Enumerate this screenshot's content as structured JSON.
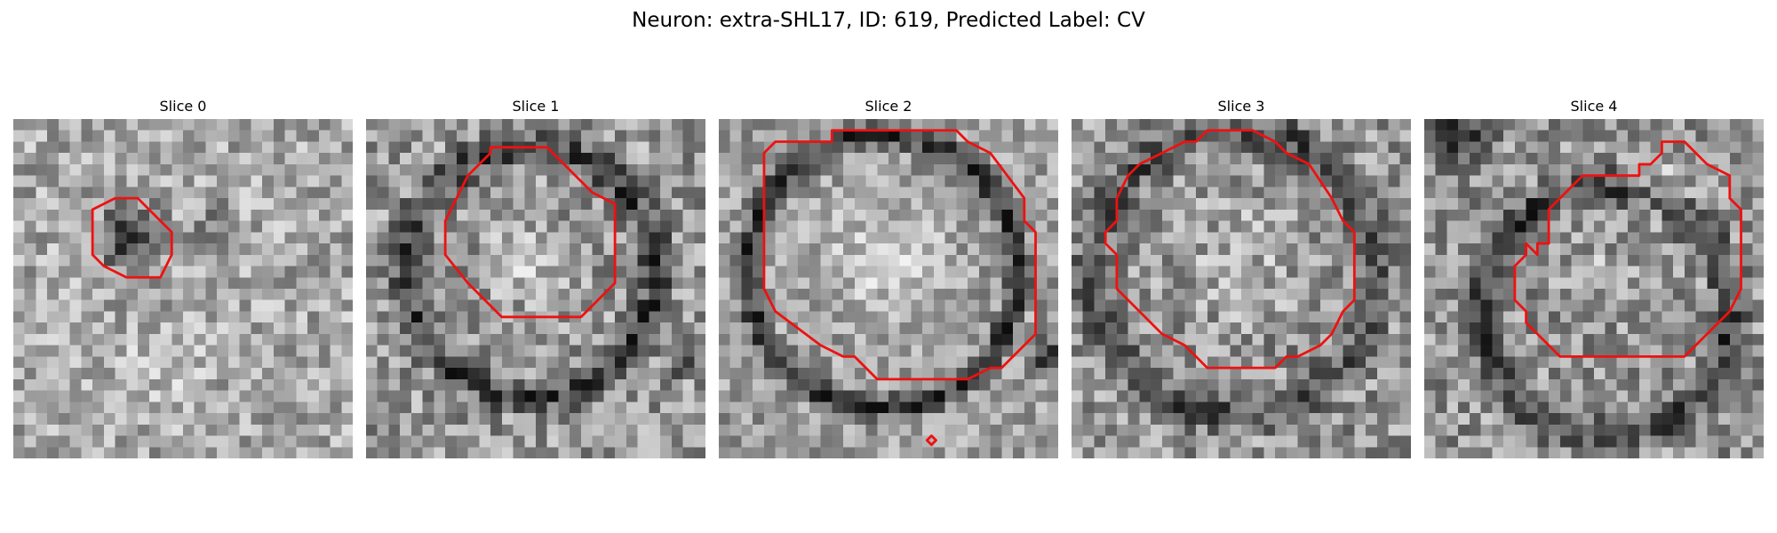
{
  "figure": {
    "title": "Neuron: extra-SHL17, ID: 619, Predicted Label: CV"
  },
  "colors": {
    "contour": "#ee1111",
    "background": "#ffffff"
  },
  "slices": [
    {
      "label": "Slice 0"
    },
    {
      "label": "Slice 1"
    },
    {
      "label": "Slice 2"
    },
    {
      "label": "Slice 3"
    },
    {
      "label": "Slice 4"
    }
  ]
}
